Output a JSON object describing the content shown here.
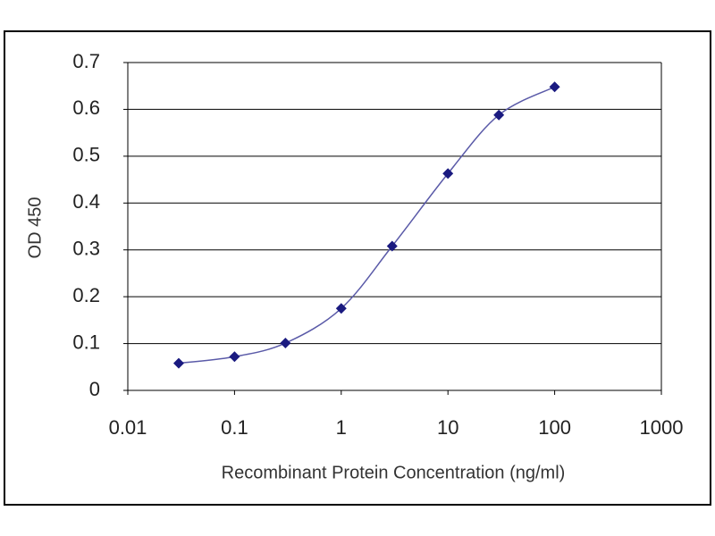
{
  "chart_data": {
    "type": "line",
    "xlabel": "Recombinant Protein Concentration (ng/ml)",
    "ylabel": "OD 450",
    "x": [
      0.03,
      0.1,
      0.3,
      1,
      3,
      10,
      30,
      100
    ],
    "series": [
      {
        "color": "#1a1a80",
        "values": [
          0.058,
          0.072,
          0.101,
          0.175,
          0.308,
          0.463,
          0.588,
          0.648
        ]
      }
    ],
    "xscale": "log",
    "xlim": [
      0.01,
      1000
    ],
    "xticks": [
      0.01,
      0.1,
      1,
      10,
      100,
      1000
    ],
    "ylim": [
      0,
      0.7
    ],
    "yticks": [
      0,
      0.1,
      0.2,
      0.3,
      0.4,
      0.5,
      0.6,
      0.7
    ],
    "grid": true
  }
}
